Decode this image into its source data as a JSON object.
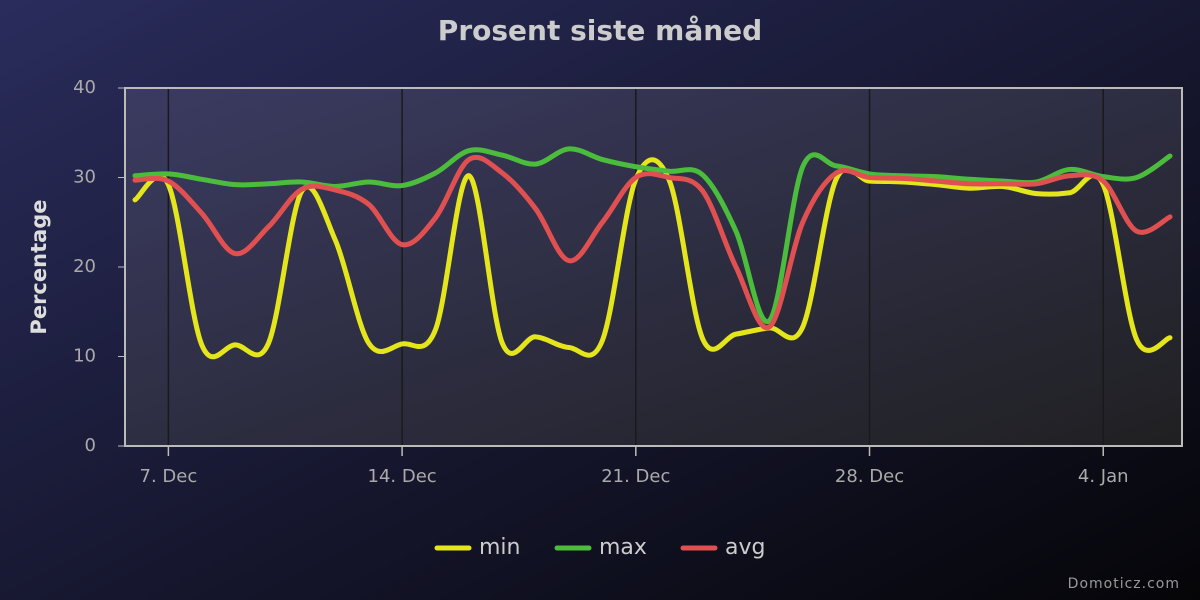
{
  "chart_data": {
    "type": "line",
    "title": "Prosent siste måned",
    "y_label": "Percentage",
    "credits": "Domoticz.com",
    "x": [
      "12-06",
      "12-07",
      "12-08",
      "12-09",
      "12-10",
      "12-11",
      "12-12",
      "12-13",
      "12-14",
      "12-15",
      "12-16",
      "12-17",
      "12-18",
      "12-19",
      "12-20",
      "12-21",
      "12-22",
      "12-23",
      "12-24",
      "12-25",
      "12-26",
      "12-27",
      "12-28",
      "12-29",
      "12-30",
      "12-31",
      "01-01",
      "01-02",
      "01-03",
      "01-04",
      "01-05",
      "01-06"
    ],
    "xlim": [
      "12-06",
      "01-06"
    ],
    "xticks": [
      {
        "value": "12-07",
        "label": "7. Dec"
      },
      {
        "value": "12-14",
        "label": "14. Dec"
      },
      {
        "value": "12-21",
        "label": "21. Dec"
      },
      {
        "value": "12-28",
        "label": "28. Dec"
      },
      {
        "value": "01-04",
        "label": "4. Jan"
      }
    ],
    "ylim": [
      0,
      40
    ],
    "yticks": [
      0,
      10,
      20,
      30,
      40
    ],
    "xgrid": true,
    "legend": "bottom",
    "series": [
      {
        "name": "min",
        "color": "#e5e51c",
        "values": [
          27.5,
          29.2,
          11.3,
          11.3,
          11.5,
          28.5,
          23,
          11.5,
          11.4,
          13,
          30.2,
          11.5,
          12.2,
          11,
          11.8,
          29.8,
          29.7,
          12,
          12.5,
          13.2,
          13.3,
          29.8,
          29.6,
          29.5,
          29.2,
          28.8,
          29,
          28.2,
          28.3,
          29.2,
          11.9,
          12.1
        ]
      },
      {
        "name": "max",
        "color": "#4cbc3c",
        "values": [
          30.2,
          30.4,
          29.8,
          29.2,
          29.3,
          29.5,
          29,
          29.5,
          29.1,
          30.5,
          33,
          32.5,
          31.5,
          33.2,
          32,
          31.2,
          30.7,
          30.3,
          24,
          14,
          31.2,
          31.3,
          30.4,
          30.2,
          30.1,
          29.8,
          29.6,
          29.5,
          30.9,
          30.1,
          30,
          32.4
        ]
      },
      {
        "name": "avg",
        "color": "#e05050",
        "values": [
          29.7,
          29.6,
          26,
          21.5,
          24.5,
          28.7,
          28.6,
          27,
          22.5,
          25.5,
          32,
          30.5,
          26.5,
          20.7,
          25,
          30,
          30,
          28.5,
          20,
          13.3,
          25,
          30.5,
          30,
          29.9,
          29.6,
          29.3,
          29.3,
          29.3,
          30.2,
          29.6,
          24,
          25.6
        ]
      }
    ]
  }
}
